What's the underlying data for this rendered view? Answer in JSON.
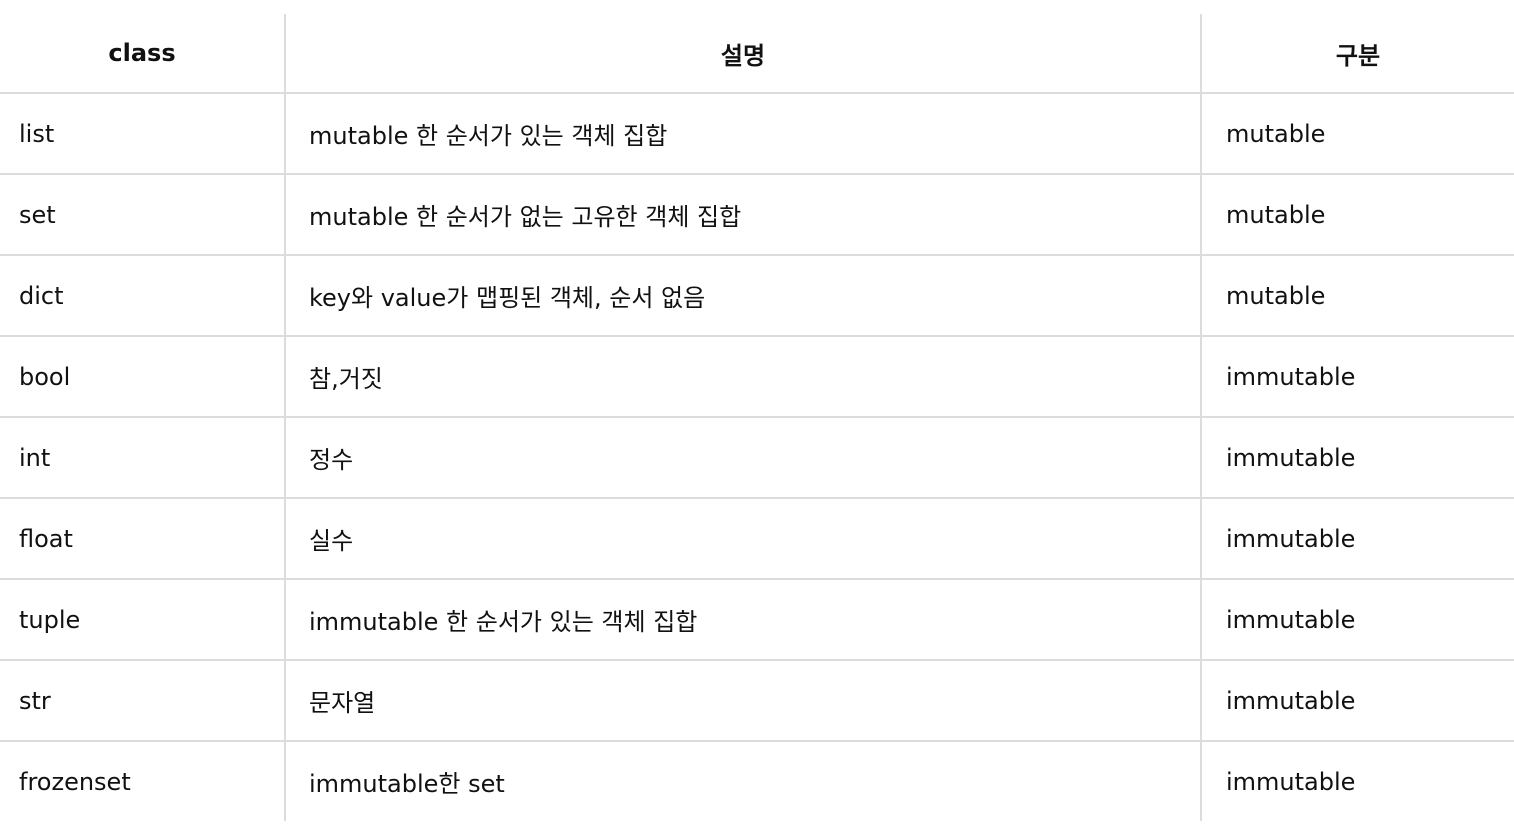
{
  "table": {
    "headers": [
      "class",
      "설명",
      "구분"
    ],
    "rows": [
      [
        "list",
        "mutable 한 순서가 있는 객체 집합",
        "mutable"
      ],
      [
        "set",
        "mutable 한 순서가 없는 고유한 객체 집합",
        "mutable"
      ],
      [
        "dict",
        "key와 value가 맵핑된 객체, 순서 없음",
        "mutable"
      ],
      [
        "bool",
        "참,거짓",
        "immutable"
      ],
      [
        "int",
        "정수",
        "immutable"
      ],
      [
        "float",
        "실수",
        "immutable"
      ],
      [
        "tuple",
        "immutable 한 순서가 있는 객체 집합",
        "immutable"
      ],
      [
        "str",
        "문자열",
        "immutable"
      ],
      [
        "frozenset",
        "immutable한 set",
        "immutable"
      ]
    ]
  },
  "colors": {
    "text": "#111111",
    "border": "#dcdcdc",
    "background": "#ffffff"
  }
}
